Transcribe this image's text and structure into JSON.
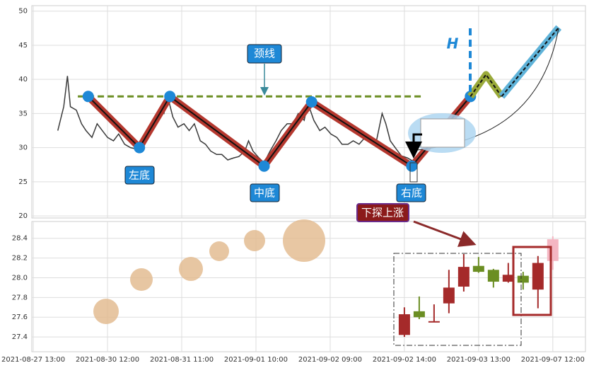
{
  "chart_data": [
    {
      "type": "line",
      "xlim": [
        -0.02,
        7.44
      ],
      "ylim": [
        19.7,
        50.8
      ],
      "yticks": [
        20,
        25,
        30,
        35,
        40,
        45,
        50
      ],
      "grid": true,
      "series": [
        {
          "color": "#3a3a3a",
          "style": "line",
          "x": [
            0.33,
            0.41,
            0.46,
            0.5,
            0.58,
            0.65,
            0.71,
            0.79,
            0.86,
            0.93,
            1.0,
            1.08,
            1.15,
            1.23,
            1.31,
            1.39,
            1.46,
            1.53,
            1.61,
            1.69,
            1.76,
            1.81,
            1.88,
            1.95,
            2.03,
            2.1,
            2.17,
            2.25,
            2.32,
            2.39,
            2.47,
            2.54,
            2.62,
            2.7,
            2.77,
            2.85,
            2.9,
            2.96,
            3.04,
            3.11,
            3.19,
            3.27,
            3.34,
            3.42,
            3.5,
            3.57,
            3.65,
            3.7,
            3.78,
            3.86,
            3.93,
            4.01,
            4.09,
            4.16,
            4.24,
            4.31,
            4.39,
            4.47,
            4.54,
            4.62,
            4.7,
            4.75,
            4.81,
            4.89,
            4.96,
            5.04,
            5.12
          ],
          "values": [
            32.5,
            36,
            40.5,
            36,
            35.5,
            33.5,
            32.5,
            31.5,
            33.5,
            32.5,
            31.5,
            31,
            32,
            30.5,
            30,
            29.8,
            30.5,
            32.5,
            33.5,
            35.5,
            35,
            37.5,
            34.5,
            33,
            33.5,
            32.5,
            33.5,
            31,
            30.5,
            29.5,
            29,
            29,
            28.2,
            28.5,
            28.7,
            29.5,
            31,
            29.5,
            28.5,
            27.8,
            29.5,
            31,
            32.5,
            33.5,
            33.5,
            35,
            34,
            36.5,
            34,
            32.5,
            33,
            32,
            31.5,
            30.5,
            30.5,
            31,
            30.5,
            31.5,
            31,
            30.8,
            35,
            33.5,
            31,
            29.8,
            28.8,
            28.5,
            28
          ]
        },
        {
          "color": "#6b8e23",
          "style": "dashed",
          "x": [
            0.6,
            5.25
          ],
          "values": [
            37.5,
            37.5
          ]
        },
        {
          "color": "#b5382f",
          "style": "band",
          "markers": true,
          "x": [
            0.74,
            1.43,
            1.84,
            3.11,
            3.75,
            5.1,
            5.89
          ],
          "values": [
            37.5,
            30,
            37.5,
            27.3,
            36.7,
            27.3,
            37.5
          ]
        },
        {
          "color": "#9aaa3a",
          "style": "band-dashed",
          "x": [
            5.89,
            6.1,
            6.31
          ],
          "values": [
            37.5,
            40.7,
            37.5
          ]
        },
        {
          "color": "#5fb3d9",
          "style": "band-dashed",
          "x": [
            6.31,
            7.08
          ],
          "values": [
            37.5,
            47.6
          ]
        }
      ],
      "annotations": [
        "颈线",
        "左底",
        "中底",
        "右底",
        "H",
        "下探上涨"
      ]
    },
    {
      "type": "candlestick",
      "xlim": [
        -0.02,
        7.44
      ],
      "ylim": [
        27.25,
        28.57
      ],
      "yticks": [
        27.4,
        27.6,
        27.8,
        {
          "value": 28.0,
          "label": "28.0"
        },
        28.2,
        28.4
      ],
      "grid": true,
      "xticks": [
        {
          "value": 0,
          "label": "2021-08-27 13:00"
        },
        {
          "value": 1,
          "label": "2021-08-30 12:00"
        },
        {
          "value": 2,
          "label": "2021-08-31 11:00"
        },
        {
          "value": 3,
          "label": "2021-09-01 10:00"
        },
        {
          "value": 4,
          "label": "2021-09-02 09:00"
        },
        {
          "value": 5,
          "label": "2021-09-02 14:00"
        },
        {
          "value": 6,
          "label": "2021-09-03 13:00"
        },
        {
          "value": 7,
          "label": "2021-09-07 12:00"
        }
      ],
      "x": [
        5.0,
        5.2,
        5.4,
        5.6,
        5.8,
        6.0,
        6.2,
        6.4,
        6.6,
        6.8,
        7.0
      ],
      "open": [
        27.63,
        27.6,
        27.56,
        27.74,
        27.91,
        28.12,
        28.08,
        27.96,
        28.02,
        27.88,
        28.17
      ],
      "close": [
        27.42,
        27.66,
        27.55,
        27.9,
        28.11,
        28.06,
        27.96,
        28.03,
        27.95,
        28.15,
        28.39
      ],
      "high": [
        27.7,
        27.81,
        27.73,
        28.08,
        28.24,
        28.21,
        28.09,
        28.15,
        28.06,
        28.22,
        28.42
      ],
      "low": [
        27.4,
        27.58,
        27.55,
        27.64,
        27.86,
        28.05,
        27.9,
        27.95,
        27.88,
        27.69,
        28.08
      ],
      "colors": [
        "#a52a2a",
        "#6b8e23",
        "#a52a2a",
        "#a52a2a",
        "#a52a2a",
        "#6b8e23",
        "#6b8e23",
        "#a52a2a",
        "#6b8e23",
        "#a52a2a",
        "#f4b6c2"
      ]
    }
  ]
}
